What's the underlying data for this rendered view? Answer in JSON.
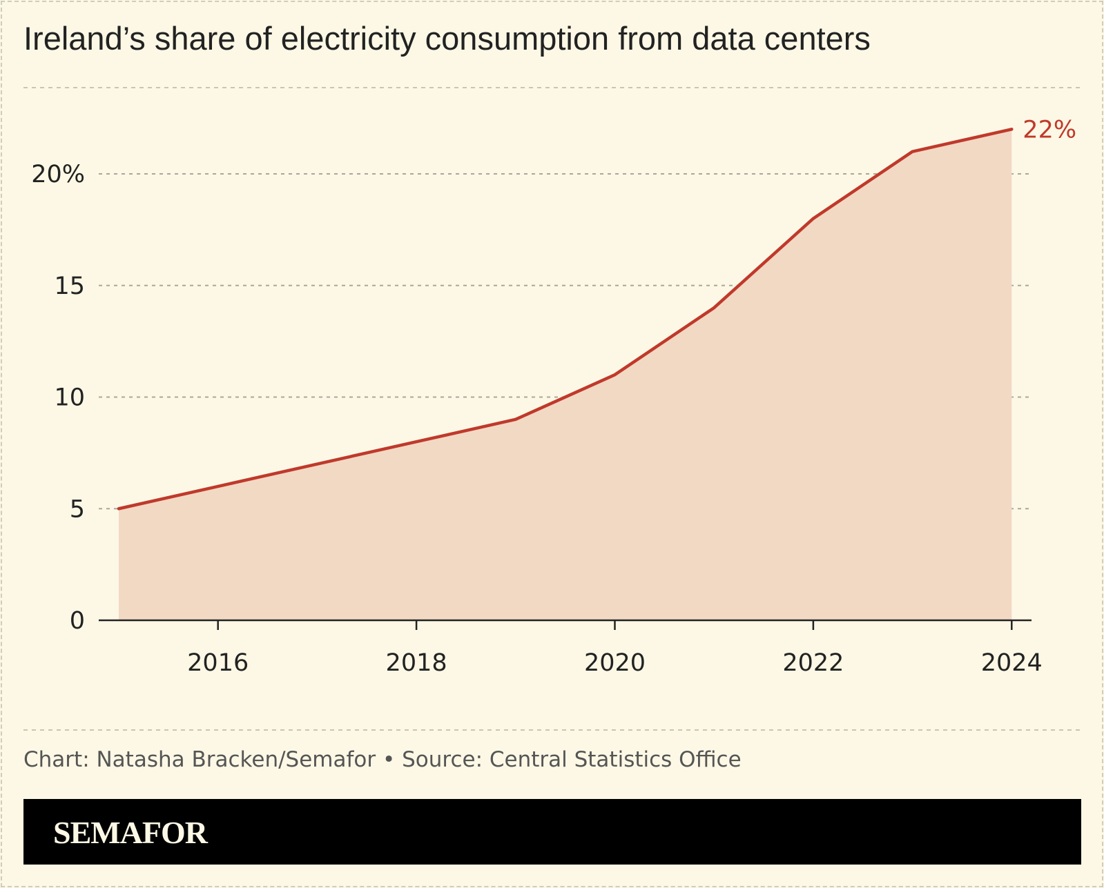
{
  "title": "Ireland’s share of electricity consumption from data centers",
  "source": "Chart: Natasha Bracken/Semafor • Source: Central Statistics Office",
  "brand": "SEMAFOR",
  "chart_data": {
    "type": "area",
    "title": "Ireland’s share of electricity consumption from data centers",
    "x": [
      2015,
      2016,
      2017,
      2018,
      2019,
      2020,
      2021,
      2022,
      2023,
      2024
    ],
    "values": [
      5,
      6,
      7,
      8,
      9,
      11,
      14,
      18,
      21,
      22
    ],
    "end_label": "22%",
    "xticks": [
      "2016",
      "2018",
      "2020",
      "2022",
      "2024"
    ],
    "yticks": [
      "0",
      "5",
      "10",
      "15",
      "20%"
    ],
    "ylim": [
      0,
      25
    ],
    "grid": true,
    "colors": {
      "line": "#c0392b",
      "fill": "#f2d9c4",
      "background": "#fcf8e5"
    }
  }
}
